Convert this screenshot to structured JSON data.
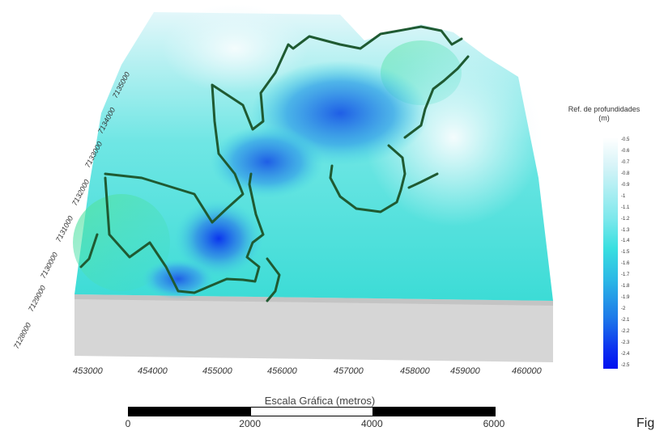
{
  "legend": {
    "title": "Ref. de profundidades",
    "unit": "(m)",
    "ticks": [
      "-0.5",
      "-0.6",
      "-0.7",
      "-0.8",
      "-0.9",
      "-1",
      "-1.1",
      "-1.2",
      "-1.3",
      "-1.4",
      "-1.5",
      "-1.6",
      "-1.7",
      "-1.8",
      "-1.9",
      "-2",
      "-2.1",
      "-2.2",
      "-2.3",
      "-2.4",
      "-2.5"
    ],
    "color_low": "#ffffff",
    "color_high": "#0010f0"
  },
  "x_axis": {
    "labels": [
      "453000",
      "454000",
      "455000",
      "456000",
      "457000",
      "458000",
      "459000",
      "460000"
    ]
  },
  "y_axis": {
    "labels": [
      "7128000",
      "7129000",
      "7130000",
      "7131000",
      "7132000",
      "7133000",
      "7134000",
      "7135000"
    ]
  },
  "scale_bar": {
    "title": "Escala Gráfica (metros)",
    "labels": [
      "0",
      "2000",
      "4000",
      "6000"
    ]
  },
  "figure_label": "Fig",
  "colors": {
    "surface_light": "#e8f8fb",
    "surface_mid": "#3fe0dc",
    "surface_deep": "#1a6fe0",
    "contour": "#1f5a32",
    "base": "#d4d4d4"
  }
}
